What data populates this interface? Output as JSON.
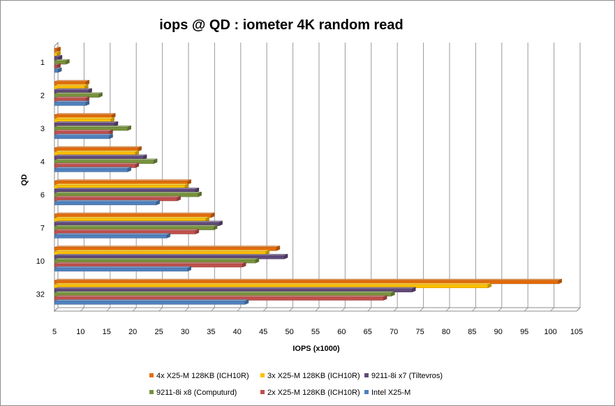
{
  "chart_data": {
    "type": "bar",
    "orientation": "horizontal",
    "style": "3d-clustered",
    "title": "iops @ QD : iometer 4K random read",
    "xlabel": "IOPS  (x1000)",
    "ylabel": "QD",
    "xlim": [
      5,
      105
    ],
    "xticks": [
      "5",
      "10",
      "15",
      "20",
      "25",
      "30",
      "35",
      "40",
      "45",
      "50",
      "55",
      "60",
      "65",
      "70",
      "75",
      "80",
      "85",
      "90",
      "95",
      "100",
      "105"
    ],
    "categories": [
      "1",
      "2",
      "3",
      "4",
      "6",
      "7",
      "10",
      "32"
    ],
    "grid": "vertical",
    "legend_position": "bottom",
    "series": [
      {
        "name": "4x X25-M 128KB (ICH10R)",
        "color": "#E46C0A",
        "values": [
          5.5,
          11,
          16,
          21,
          30.5,
          35,
          47.5,
          101.5
        ]
      },
      {
        "name": "3x X25-M 128KB (ICH10R)",
        "color": "#FFC000",
        "values": [
          5.5,
          10.8,
          15.8,
          20.5,
          30,
          34,
          45.5,
          88
        ]
      },
      {
        "name": "9211-8i x7 (Tiltevros)",
        "color": "#60497A",
        "values": [
          5.8,
          11.5,
          16.5,
          22,
          32,
          36.5,
          49,
          73.5
        ]
      },
      {
        "name": "9211-8i x8 (Computurd)",
        "color": "#77933C",
        "values": [
          7.2,
          13.5,
          19,
          24,
          32.5,
          35.5,
          43.5,
          69.5
        ]
      },
      {
        "name": "2x X25-M 128KB (ICH10R)",
        "color": "#C0504D",
        "values": [
          5.5,
          11,
          15.5,
          20.5,
          28.5,
          32,
          41,
          68
        ]
      },
      {
        "name": "Intel X25-M",
        "color": "#4F81BD",
        "values": [
          5.7,
          11,
          15.5,
          19,
          24.5,
          26.5,
          30.5,
          41.5
        ]
      }
    ]
  }
}
